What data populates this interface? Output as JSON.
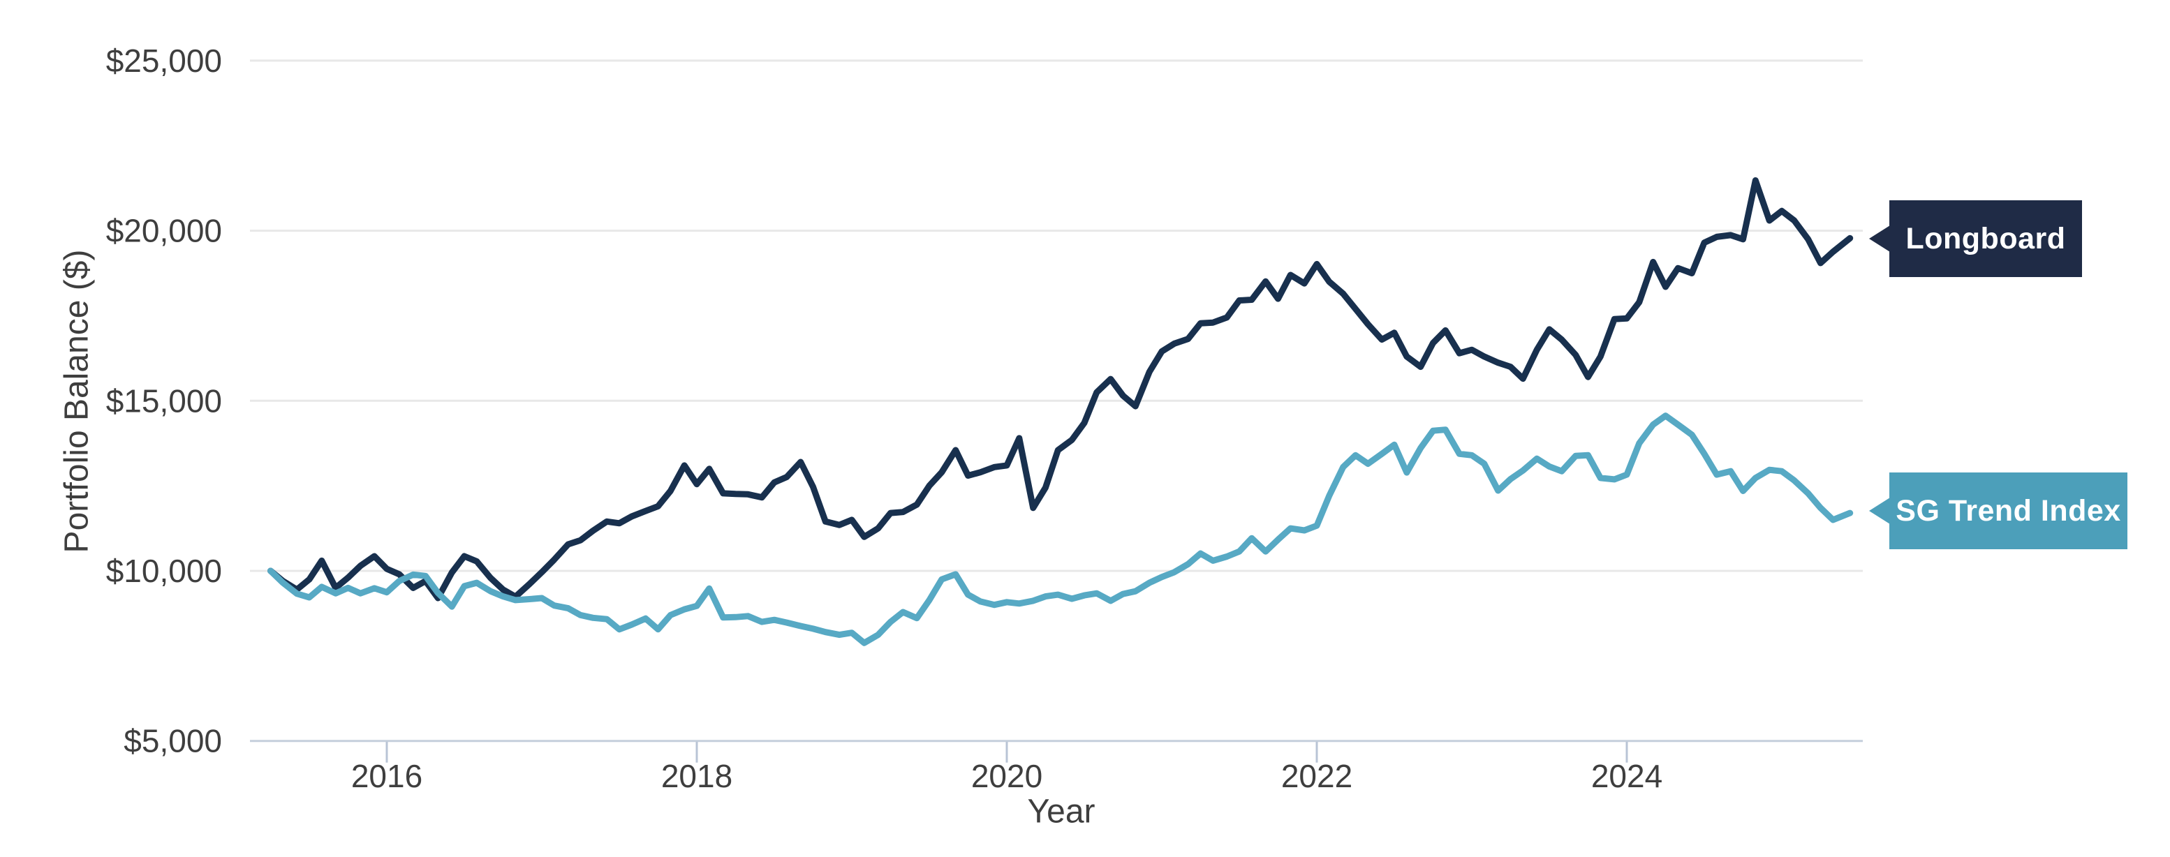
{
  "chart_data": {
    "type": "line",
    "title": "",
    "xlabel": "Year",
    "ylabel": "Portfolio Balance ($)",
    "x_ticks": [
      2016,
      2018,
      2020,
      2022,
      2024
    ],
    "x_tick_labels": [
      "2016",
      "2018",
      "2020",
      "2022",
      "2024"
    ],
    "y_ticks": [
      5000,
      10000,
      15000,
      20000,
      25000
    ],
    "y_tick_labels": [
      "$5,000",
      "$10,000",
      "$15,000",
      "$20,000",
      "$25,000"
    ],
    "xlim": [
      2015.1,
      2025.8
    ],
    "ylim": [
      4500,
      25750
    ],
    "grid": "horizontal",
    "legend_position": "right-callouts",
    "colors": {
      "axis_text": "#3E3E3E",
      "gridline": "#E8E8E8",
      "baseline": "#C5CFDC",
      "tick_mark": "#B9C4D6",
      "background": "#FFFFFF"
    },
    "series": [
      {
        "name": "Longboard",
        "color": "#18304E",
        "label_bg": "#1F2B46",
        "points": [
          [
            2015.25,
            10000
          ],
          [
            2015.33,
            9700
          ],
          [
            2015.42,
            9450
          ],
          [
            2015.5,
            9750
          ],
          [
            2015.58,
            10300
          ],
          [
            2015.67,
            9500
          ],
          [
            2015.75,
            9800
          ],
          [
            2015.83,
            10150
          ],
          [
            2015.92,
            10430
          ],
          [
            2016.0,
            10060
          ],
          [
            2016.08,
            9900
          ],
          [
            2016.17,
            9500
          ],
          [
            2016.25,
            9700
          ],
          [
            2016.33,
            9200
          ],
          [
            2016.42,
            9950
          ],
          [
            2016.5,
            10430
          ],
          [
            2016.58,
            10280
          ],
          [
            2016.67,
            9790
          ],
          [
            2016.75,
            9450
          ],
          [
            2016.83,
            9240
          ],
          [
            2016.92,
            9610
          ],
          [
            2017.0,
            9960
          ],
          [
            2017.08,
            10330
          ],
          [
            2017.17,
            10780
          ],
          [
            2017.25,
            10900
          ],
          [
            2017.33,
            11180
          ],
          [
            2017.42,
            11450
          ],
          [
            2017.5,
            11400
          ],
          [
            2017.58,
            11600
          ],
          [
            2017.67,
            11760
          ],
          [
            2017.75,
            11900
          ],
          [
            2017.83,
            12350
          ],
          [
            2017.92,
            13100
          ],
          [
            2018.0,
            12550
          ],
          [
            2018.08,
            13000
          ],
          [
            2018.17,
            12280
          ],
          [
            2018.25,
            12260
          ],
          [
            2018.33,
            12250
          ],
          [
            2018.42,
            12160
          ],
          [
            2018.5,
            12600
          ],
          [
            2018.58,
            12760
          ],
          [
            2018.67,
            13200
          ],
          [
            2018.75,
            12470
          ],
          [
            2018.83,
            11450
          ],
          [
            2018.92,
            11350
          ],
          [
            2019.0,
            11500
          ],
          [
            2019.08,
            11000
          ],
          [
            2019.17,
            11250
          ],
          [
            2019.25,
            11700
          ],
          [
            2019.33,
            11730
          ],
          [
            2019.42,
            11950
          ],
          [
            2019.5,
            12500
          ],
          [
            2019.58,
            12900
          ],
          [
            2019.67,
            13550
          ],
          [
            2019.75,
            12800
          ],
          [
            2019.83,
            12900
          ],
          [
            2019.92,
            13050
          ],
          [
            2020.0,
            13100
          ],
          [
            2020.08,
            13900
          ],
          [
            2020.17,
            11850
          ],
          [
            2020.25,
            12450
          ],
          [
            2020.33,
            13550
          ],
          [
            2020.42,
            13850
          ],
          [
            2020.5,
            14350
          ],
          [
            2020.58,
            15250
          ],
          [
            2020.67,
            15640
          ],
          [
            2020.75,
            15150
          ],
          [
            2020.83,
            14840
          ],
          [
            2020.92,
            15850
          ],
          [
            2021.0,
            16450
          ],
          [
            2021.08,
            16680
          ],
          [
            2021.17,
            16820
          ],
          [
            2021.25,
            17280
          ],
          [
            2021.33,
            17300
          ],
          [
            2021.42,
            17450
          ],
          [
            2021.5,
            17950
          ],
          [
            2021.58,
            17970
          ],
          [
            2021.67,
            18510
          ],
          [
            2021.75,
            18000
          ],
          [
            2021.83,
            18700
          ],
          [
            2021.92,
            18450
          ],
          [
            2022.0,
            19020
          ],
          [
            2022.08,
            18500
          ],
          [
            2022.17,
            18150
          ],
          [
            2022.25,
            17700
          ],
          [
            2022.33,
            17250
          ],
          [
            2022.42,
            16800
          ],
          [
            2022.5,
            17000
          ],
          [
            2022.58,
            16300
          ],
          [
            2022.67,
            16000
          ],
          [
            2022.75,
            16700
          ],
          [
            2022.83,
            17070
          ],
          [
            2022.92,
            16400
          ],
          [
            2023.0,
            16500
          ],
          [
            2023.08,
            16300
          ],
          [
            2023.17,
            16120
          ],
          [
            2023.25,
            16000
          ],
          [
            2023.33,
            15650
          ],
          [
            2023.42,
            16500
          ],
          [
            2023.5,
            17100
          ],
          [
            2023.58,
            16800
          ],
          [
            2023.67,
            16350
          ],
          [
            2023.75,
            15700
          ],
          [
            2023.83,
            16300
          ],
          [
            2023.92,
            17400
          ],
          [
            2024.0,
            17420
          ],
          [
            2024.08,
            17900
          ],
          [
            2024.17,
            19080
          ],
          [
            2024.25,
            18350
          ],
          [
            2024.33,
            18900
          ],
          [
            2024.42,
            18750
          ],
          [
            2024.5,
            19650
          ],
          [
            2024.58,
            19820
          ],
          [
            2024.67,
            19870
          ],
          [
            2024.75,
            19750
          ],
          [
            2024.83,
            21480
          ],
          [
            2024.92,
            20300
          ],
          [
            2025.0,
            20580
          ],
          [
            2025.08,
            20300
          ],
          [
            2025.17,
            19750
          ],
          [
            2025.25,
            19050
          ],
          [
            2025.33,
            19380
          ],
          [
            2025.44,
            19780
          ]
        ]
      },
      {
        "name": "SG Trend Index",
        "color": "#57A9C4",
        "label_bg": "#4C9FBA",
        "points": [
          [
            2015.25,
            10000
          ],
          [
            2015.33,
            9650
          ],
          [
            2015.42,
            9330
          ],
          [
            2015.5,
            9220
          ],
          [
            2015.58,
            9530
          ],
          [
            2015.67,
            9340
          ],
          [
            2015.75,
            9500
          ],
          [
            2015.83,
            9340
          ],
          [
            2015.92,
            9490
          ],
          [
            2016.0,
            9370
          ],
          [
            2016.08,
            9700
          ],
          [
            2016.17,
            9890
          ],
          [
            2016.25,
            9850
          ],
          [
            2016.33,
            9350
          ],
          [
            2016.42,
            8950
          ],
          [
            2016.5,
            9550
          ],
          [
            2016.58,
            9650
          ],
          [
            2016.67,
            9400
          ],
          [
            2016.75,
            9250
          ],
          [
            2016.83,
            9140
          ],
          [
            2016.92,
            9170
          ],
          [
            2017.0,
            9200
          ],
          [
            2017.08,
            8980
          ],
          [
            2017.17,
            8900
          ],
          [
            2017.25,
            8700
          ],
          [
            2017.33,
            8620
          ],
          [
            2017.42,
            8580
          ],
          [
            2017.5,
            8280
          ],
          [
            2017.58,
            8420
          ],
          [
            2017.67,
            8600
          ],
          [
            2017.75,
            8280
          ],
          [
            2017.83,
            8700
          ],
          [
            2017.92,
            8870
          ],
          [
            2018.0,
            8970
          ],
          [
            2018.08,
            9480
          ],
          [
            2018.17,
            8630
          ],
          [
            2018.25,
            8640
          ],
          [
            2018.33,
            8670
          ],
          [
            2018.42,
            8500
          ],
          [
            2018.5,
            8560
          ],
          [
            2018.58,
            8480
          ],
          [
            2018.67,
            8380
          ],
          [
            2018.75,
            8300
          ],
          [
            2018.83,
            8200
          ],
          [
            2018.92,
            8120
          ],
          [
            2019.0,
            8180
          ],
          [
            2019.08,
            7880
          ],
          [
            2019.17,
            8120
          ],
          [
            2019.25,
            8500
          ],
          [
            2019.33,
            8790
          ],
          [
            2019.42,
            8610
          ],
          [
            2019.5,
            9140
          ],
          [
            2019.58,
            9750
          ],
          [
            2019.67,
            9900
          ],
          [
            2019.75,
            9300
          ],
          [
            2019.83,
            9100
          ],
          [
            2019.92,
            9000
          ],
          [
            2020.0,
            9080
          ],
          [
            2020.08,
            9040
          ],
          [
            2020.17,
            9120
          ],
          [
            2020.25,
            9250
          ],
          [
            2020.33,
            9300
          ],
          [
            2020.42,
            9180
          ],
          [
            2020.5,
            9280
          ],
          [
            2020.58,
            9340
          ],
          [
            2020.67,
            9120
          ],
          [
            2020.75,
            9320
          ],
          [
            2020.83,
            9400
          ],
          [
            2020.92,
            9650
          ],
          [
            2021.0,
            9820
          ],
          [
            2021.08,
            9960
          ],
          [
            2021.17,
            10200
          ],
          [
            2021.25,
            10510
          ],
          [
            2021.33,
            10300
          ],
          [
            2021.42,
            10420
          ],
          [
            2021.5,
            10570
          ],
          [
            2021.58,
            10960
          ],
          [
            2021.67,
            10570
          ],
          [
            2021.75,
            10920
          ],
          [
            2021.83,
            11250
          ],
          [
            2021.92,
            11190
          ],
          [
            2022.0,
            11330
          ],
          [
            2022.08,
            12210
          ],
          [
            2022.17,
            13050
          ],
          [
            2022.25,
            13400
          ],
          [
            2022.33,
            13150
          ],
          [
            2022.42,
            13440
          ],
          [
            2022.5,
            13710
          ],
          [
            2022.58,
            12890
          ],
          [
            2022.67,
            13610
          ],
          [
            2022.75,
            14120
          ],
          [
            2022.83,
            14150
          ],
          [
            2022.92,
            13440
          ],
          [
            2023.0,
            13400
          ],
          [
            2023.08,
            13150
          ],
          [
            2023.17,
            12360
          ],
          [
            2023.25,
            12700
          ],
          [
            2023.33,
            12950
          ],
          [
            2023.42,
            13300
          ],
          [
            2023.5,
            13070
          ],
          [
            2023.58,
            12930
          ],
          [
            2023.67,
            13380
          ],
          [
            2023.75,
            13400
          ],
          [
            2023.83,
            12730
          ],
          [
            2023.92,
            12690
          ],
          [
            2024.0,
            12830
          ],
          [
            2024.08,
            13750
          ],
          [
            2024.17,
            14300
          ],
          [
            2024.25,
            14560
          ],
          [
            2024.33,
            14300
          ],
          [
            2024.42,
            14000
          ],
          [
            2024.5,
            13440
          ],
          [
            2024.58,
            12830
          ],
          [
            2024.67,
            12930
          ],
          [
            2024.75,
            12350
          ],
          [
            2024.83,
            12730
          ],
          [
            2024.92,
            12970
          ],
          [
            2025.0,
            12930
          ],
          [
            2025.08,
            12660
          ],
          [
            2025.17,
            12280
          ],
          [
            2025.25,
            11850
          ],
          [
            2025.33,
            11500
          ],
          [
            2025.44,
            11700
          ]
        ]
      }
    ]
  }
}
